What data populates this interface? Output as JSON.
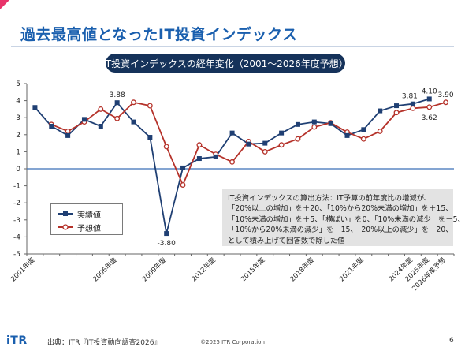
{
  "slide": {
    "title": "過去最高値となったIT投資インデックス",
    "subtitle": "IT投資インデックスの経年変化（2001〜2026年度予想）",
    "note_lines": [
      "IT投資インデックスの算出方法：IT予算の前年度比の増減が、",
      "「20%以上の増加」を＋20、「10%から20%未満の増加」を＋15、",
      "「10%未満の増加」を＋5、「横ばい」を0、「10%未満の減少」を－5、",
      "「10%から20%未満の減少」を－15、「20%以上の減少」を－20、",
      "として積み上げて回答数で除した値"
    ],
    "footer": {
      "logo": "iTR",
      "source": "出典：ITR『IT投資動向調査2026』",
      "copyright": "©2025 ITR Corporation",
      "page": "6"
    }
  },
  "colors": {
    "title": "#1a5fae",
    "actual": "#1f3f73",
    "forecast": "#b5322a",
    "pill": "#15325a",
    "zero_line": "#3b6fb6"
  },
  "chart_data": {
    "type": "line",
    "title": "",
    "xlabel": "",
    "ylabel": "",
    "ylim": [
      -5,
      5
    ],
    "yticks": [
      5,
      4,
      3,
      2,
      1,
      0,
      -1,
      -2,
      -3,
      -4,
      -5
    ],
    "x": [
      "2001年度",
      "2002年度",
      "2003年度",
      "2004年度",
      "2005年度",
      "2006年度",
      "2007年度",
      "2008年度",
      "2009年度",
      "2010年度",
      "2011年度",
      "2012年度",
      "2013年度",
      "2014年度",
      "2015年度",
      "2016年度",
      "2017年度",
      "2018年度",
      "2019年度",
      "2020年度",
      "2021年度",
      "2022年度",
      "2023年度",
      "2024年度",
      "2025年度",
      "2026年度予想"
    ],
    "xtick_labels": [
      "2001年度",
      "",
      "",
      "",
      "",
      "2006年度",
      "",
      "",
      "2009年度",
      "",
      "",
      "2012年度",
      "",
      "",
      "2015年度",
      "",
      "",
      "2018年度",
      "",
      "",
      "2021年度",
      "",
      "",
      "2024年度",
      "2025年度",
      "2026年度予想"
    ],
    "legend": "left-middle",
    "series": [
      {
        "name": "実績値",
        "marker": "square",
        "values": [
          3.6,
          2.5,
          1.95,
          2.9,
          2.5,
          3.88,
          2.75,
          1.85,
          -3.8,
          0.05,
          0.6,
          0.7,
          2.1,
          1.45,
          1.5,
          2.1,
          2.6,
          2.75,
          2.65,
          1.95,
          2.3,
          3.4,
          3.7,
          3.81,
          4.1,
          null
        ]
      },
      {
        "name": "予想値",
        "marker": "circle",
        "values": [
          null,
          2.6,
          2.2,
          2.75,
          3.5,
          2.95,
          3.9,
          3.7,
          1.3,
          -0.95,
          1.4,
          0.85,
          0.4,
          1.6,
          1.0,
          1.4,
          1.75,
          2.45,
          2.7,
          2.15,
          1.75,
          2.2,
          3.3,
          3.55,
          3.62,
          3.9
        ]
      }
    ],
    "data_labels": [
      {
        "series": 0,
        "index": 5,
        "text": "3.88"
      },
      {
        "series": 0,
        "index": 8,
        "text": "-3.80"
      },
      {
        "series": 0,
        "index": 23,
        "text": "3.81"
      },
      {
        "series": 0,
        "index": 24,
        "text": "4.10"
      },
      {
        "series": 1,
        "index": 24,
        "text": "3.62"
      },
      {
        "series": 1,
        "index": 25,
        "text": "3.90"
      }
    ]
  }
}
